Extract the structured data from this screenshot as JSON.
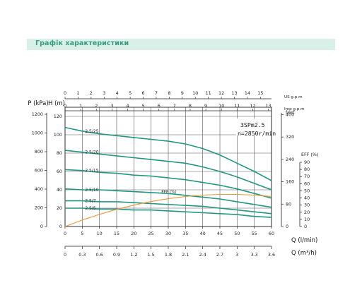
{
  "header": {
    "title": "Графік характеристики"
  },
  "chart_data": {
    "type": "line",
    "model": "3SPm2.5",
    "speed": "n=2850r/min",
    "top_axes": [
      {
        "unit": "US g.p.m",
        "ticks": [
          "0",
          "1",
          "2",
          "3",
          "4",
          "5",
          "6",
          "7",
          "8",
          "9",
          "10",
          "11",
          "12",
          "13",
          "14",
          "15"
        ]
      },
      {
        "unit": "Imp g.p.m",
        "ticks": [
          "0",
          "1",
          "2",
          "3",
          "4",
          "5",
          "6",
          "7",
          "8",
          "9",
          "10",
          "11",
          "12",
          "13"
        ]
      }
    ],
    "left_axes": [
      {
        "label": "P (kPa)",
        "ticks": [
          "0",
          "200",
          "400",
          "600",
          "800",
          "1000",
          "1200"
        ]
      },
      {
        "label": "H (m)",
        "ticks": [
          "0",
          "20",
          "40",
          "60",
          "80",
          "100",
          "120"
        ]
      }
    ],
    "right_axes": [
      {
        "label": "feet",
        "ticks": [
          "0",
          "80",
          "160",
          "240",
          "320",
          "400"
        ]
      },
      {
        "label": "EFF (%)",
        "ticks": [
          "0",
          "10",
          "20",
          "30",
          "40",
          "50",
          "60",
          "70",
          "80",
          "90"
        ]
      }
    ],
    "x_axis": {
      "label": "Q (l/min)",
      "ticks": [
        "0",
        "5",
        "10",
        "15",
        "20",
        "25",
        "30",
        "35",
        "40",
        "45",
        "50",
        "55",
        "60"
      ]
    },
    "x_axis2": {
      "label": "Q (m³/h)",
      "ticks": [
        "0",
        "0.3",
        "0.6",
        "0.9",
        "1.2",
        "1.5",
        "1.8",
        "2.1",
        "2.4",
        "2.7",
        "3",
        "3.3",
        "3.6"
      ]
    },
    "xlim": [
      0,
      60
    ],
    "ylim": [
      0,
      130
    ],
    "series": [
      {
        "name": "2.5/25",
        "x": [
          0,
          5,
          10,
          15,
          20,
          25,
          30,
          35,
          40,
          45,
          50,
          55,
          60
        ],
        "y": [
          108,
          104,
          101,
          99,
          97,
          95,
          93,
          90,
          85,
          78,
          69,
          60,
          50
        ]
      },
      {
        "name": "2.5/20",
        "x": [
          0,
          5,
          10,
          15,
          20,
          25,
          30,
          35,
          40,
          45,
          50,
          55,
          60
        ],
        "y": [
          83,
          81,
          79,
          77,
          75,
          73,
          71,
          69,
          65,
          60,
          54,
          47,
          40
        ]
      },
      {
        "name": "2.5/15",
        "x": [
          0,
          5,
          10,
          15,
          20,
          25,
          30,
          35,
          40,
          45,
          50,
          55,
          60
        ],
        "y": [
          62,
          61,
          59,
          58,
          56,
          55,
          53,
          51,
          48,
          45,
          41,
          36,
          31
        ]
      },
      {
        "name": "2.5/10",
        "x": [
          0,
          5,
          10,
          15,
          20,
          25,
          30,
          35,
          40,
          45,
          50,
          55,
          60
        ],
        "y": [
          41,
          40,
          40,
          39,
          38,
          37,
          36,
          34,
          32,
          30,
          27,
          24,
          21
        ]
      },
      {
        "name": "2.5/7",
        "x": [
          0,
          5,
          10,
          15,
          20,
          25,
          30,
          35,
          40,
          45,
          50,
          55,
          60
        ],
        "y": [
          28,
          28,
          27,
          27,
          26,
          25,
          24,
          23,
          22,
          20,
          18,
          16,
          14
        ]
      },
      {
        "name": "2.5/5",
        "x": [
          0,
          5,
          10,
          15,
          20,
          25,
          30,
          35,
          40,
          45,
          50,
          55,
          60
        ],
        "y": [
          20,
          20,
          19,
          19,
          18,
          18,
          17,
          16,
          15,
          14,
          13,
          11,
          10
        ]
      },
      {
        "name": "EFF (%)",
        "axis": "eff",
        "x": [
          0,
          5,
          10,
          15,
          20,
          25,
          30,
          35,
          40,
          45,
          50,
          55,
          60
        ],
        "y": [
          0,
          9,
          17,
          24,
          30,
          35,
          39,
          42,
          44,
          45,
          45,
          44,
          42
        ]
      }
    ],
    "colors": {
      "pump_curves": "#21977f",
      "efficiency": "#e8963a",
      "banner_bg": "#d8f0e8",
      "banner_text": "#3a9a7c"
    }
  }
}
